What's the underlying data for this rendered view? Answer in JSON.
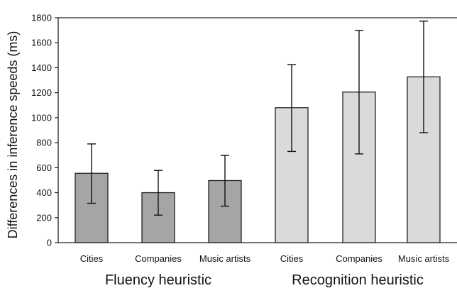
{
  "chart_data": {
    "type": "bar",
    "ylabel": "Differences in inference speeds (ms)",
    "ylim": [
      0,
      1800
    ],
    "yticks": [
      0,
      200,
      400,
      600,
      800,
      1000,
      1200,
      1400,
      1600,
      1800
    ],
    "grid": false,
    "groups": [
      {
        "name": "Fluency heuristic",
        "color": "#a3a5a7",
        "bars": [
          {
            "category": "Cities",
            "value": 555,
            "err_low": 315,
            "err_high": 790
          },
          {
            "category": "Companies",
            "value": 400,
            "err_low": 220,
            "err_high": 578
          },
          {
            "category": "Music artists",
            "value": 497,
            "err_low": 292,
            "err_high": 698
          }
        ]
      },
      {
        "name": "Recognition heuristic",
        "color": "#d9dadb",
        "bars": [
          {
            "category": "Cities",
            "value": 1080,
            "err_low": 730,
            "err_high": 1425
          },
          {
            "category": "Companies",
            "value": 1205,
            "err_low": 710,
            "err_high": 1698
          },
          {
            "category": "Music artists",
            "value": 1327,
            "err_low": 880,
            "err_high": 1773
          }
        ]
      }
    ]
  }
}
